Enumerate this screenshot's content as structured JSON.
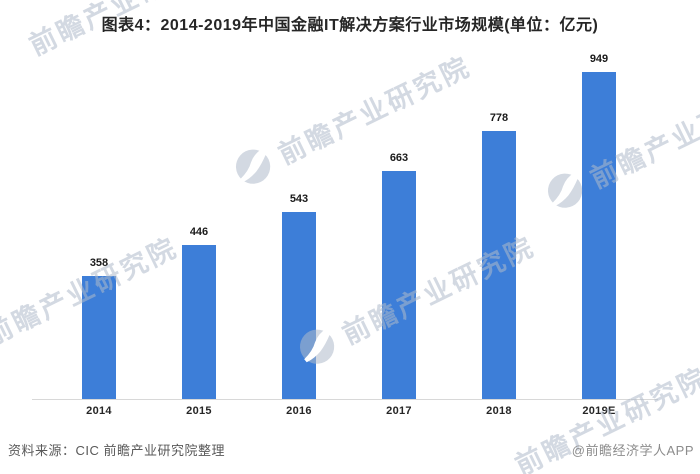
{
  "title": "图表4：2014-2019年中国金融IT解决方案行业市场规模(单位：亿元)",
  "chart_data": {
    "type": "bar",
    "title": "图表4：2014-2019年中国金融IT解决方案行业市场规模(单位：亿元)",
    "unit": "亿元",
    "categories": [
      "2014",
      "2015",
      "2016",
      "2017",
      "2018",
      "2019E"
    ],
    "values": [
      358,
      446,
      543,
      663,
      778,
      949
    ],
    "xlabel": "",
    "ylabel": "",
    "ylim": [
      0,
      949
    ],
    "grid": false,
    "legend": "none",
    "value_labels_shown": true,
    "bar_color": "#3d7ed8"
  },
  "footer": {
    "source": "资料来源：CIC 前瞻产业研究院整理",
    "credit": "@前瞻经济学人APP"
  },
  "watermark": {
    "text": "前瞻产业研究院"
  },
  "colors": {
    "bar": "#3d7ed8",
    "axis_line": "#d8d8d8",
    "title_text": "#262626",
    "value_label_text": "#1a1a1a",
    "source_text": "#595959",
    "credit_text": "#8c8c8c",
    "watermark": "#aeb9ca"
  }
}
